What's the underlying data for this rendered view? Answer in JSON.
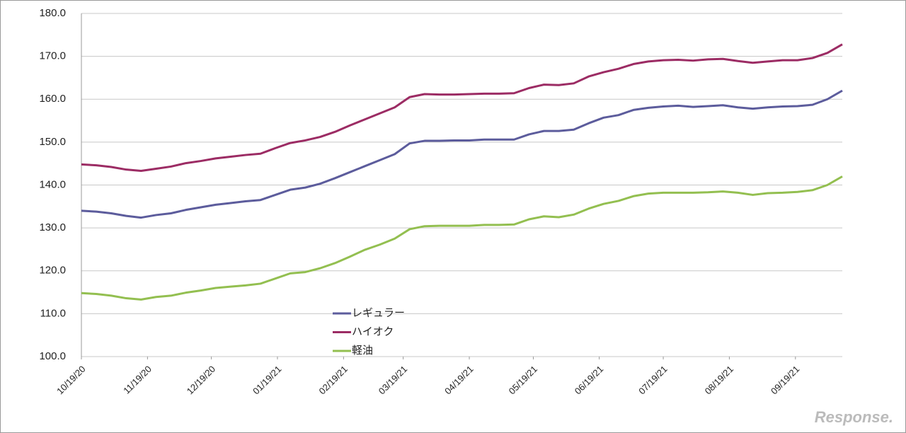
{
  "chart_data": {
    "type": "line",
    "x": [
      0,
      1,
      2,
      3,
      4,
      5,
      6,
      7,
      8,
      9,
      10,
      11,
      12,
      13,
      14,
      15,
      16,
      17,
      18,
      19,
      20,
      21,
      22,
      23,
      24,
      25,
      26,
      27,
      28,
      29,
      30,
      31,
      32,
      33,
      34,
      35,
      36,
      37,
      38,
      39,
      40,
      41,
      42,
      43,
      44,
      45,
      46,
      47,
      48,
      49,
      50,
      51
    ],
    "xlim": [
      0,
      51
    ],
    "xticks": [
      {
        "value": 0,
        "label": "10/19/20"
      },
      {
        "value": 4.43,
        "label": "11/19/20"
      },
      {
        "value": 8.71,
        "label": "12/19/20"
      },
      {
        "value": 13.14,
        "label": "01/19/21"
      },
      {
        "value": 17.57,
        "label": "02/19/21"
      },
      {
        "value": 21.57,
        "label": "03/19/21"
      },
      {
        "value": 26,
        "label": "04/19/21"
      },
      {
        "value": 30.29,
        "label": "05/19/21"
      },
      {
        "value": 34.71,
        "label": "06/19/21"
      },
      {
        "value": 39,
        "label": "07/19/21"
      },
      {
        "value": 43.43,
        "label": "08/19/21"
      },
      {
        "value": 47.86,
        "label": "09/19/21"
      }
    ],
    "ylim": [
      100,
      180
    ],
    "yticks": [
      {
        "value": 100,
        "label": "100.0"
      },
      {
        "value": 110,
        "label": "110.0"
      },
      {
        "value": 120,
        "label": "120.0"
      },
      {
        "value": 130,
        "label": "130.0"
      },
      {
        "value": 140,
        "label": "140.0"
      },
      {
        "value": 150,
        "label": "150.0"
      },
      {
        "value": 160,
        "label": "160.0"
      },
      {
        "value": 170,
        "label": "170.0"
      },
      {
        "value": 180,
        "label": "180.0"
      }
    ],
    "grid": true,
    "legend": "bottom-center",
    "series": [
      {
        "name": "レギュラー",
        "color": "#5c5c9c",
        "values": [
          134.0,
          133.8,
          133.4,
          132.8,
          132.4,
          133.0,
          133.4,
          134.2,
          134.8,
          135.4,
          135.8,
          136.2,
          136.5,
          137.7,
          138.9,
          139.4,
          140.3,
          141.6,
          143.0,
          144.4,
          145.8,
          147.2,
          149.7,
          150.3,
          150.3,
          150.4,
          150.4,
          150.6,
          150.6,
          150.6,
          151.8,
          152.6,
          152.6,
          152.9,
          154.4,
          155.7,
          156.3,
          157.5,
          158.0,
          158.3,
          158.5,
          158.2,
          158.4,
          158.6,
          158.1,
          157.8,
          158.1,
          158.3,
          158.4,
          158.7,
          160.0,
          162.0
        ]
      },
      {
        "name": "ハイオク",
        "color": "#9c2c64",
        "values": [
          144.8,
          144.6,
          144.2,
          143.6,
          143.3,
          143.8,
          144.3,
          145.1,
          145.6,
          146.2,
          146.6,
          147.0,
          147.3,
          148.6,
          149.8,
          150.4,
          151.2,
          152.4,
          153.9,
          155.3,
          156.7,
          158.1,
          160.5,
          161.2,
          161.1,
          161.1,
          161.2,
          161.3,
          161.3,
          161.4,
          162.6,
          163.4,
          163.3,
          163.7,
          165.3,
          166.3,
          167.1,
          168.2,
          168.8,
          169.1,
          169.2,
          169.0,
          169.3,
          169.4,
          168.9,
          168.5,
          168.8,
          169.1,
          169.1,
          169.6,
          170.8,
          172.8
        ]
      },
      {
        "name": "軽油",
        "color": "#93bf50",
        "values": [
          114.8,
          114.6,
          114.2,
          113.6,
          113.3,
          113.9,
          114.2,
          114.9,
          115.4,
          116.0,
          116.3,
          116.6,
          117.0,
          118.2,
          119.4,
          119.7,
          120.6,
          121.8,
          123.3,
          124.9,
          126.1,
          127.5,
          129.7,
          130.4,
          130.5,
          130.5,
          130.5,
          130.7,
          130.7,
          130.8,
          132.0,
          132.7,
          132.5,
          133.1,
          134.5,
          135.6,
          136.3,
          137.4,
          138.0,
          138.2,
          138.2,
          138.2,
          138.3,
          138.5,
          138.2,
          137.7,
          138.1,
          138.2,
          138.4,
          138.8,
          140.0,
          142.0
        ]
      }
    ],
    "watermark": "Response."
  }
}
